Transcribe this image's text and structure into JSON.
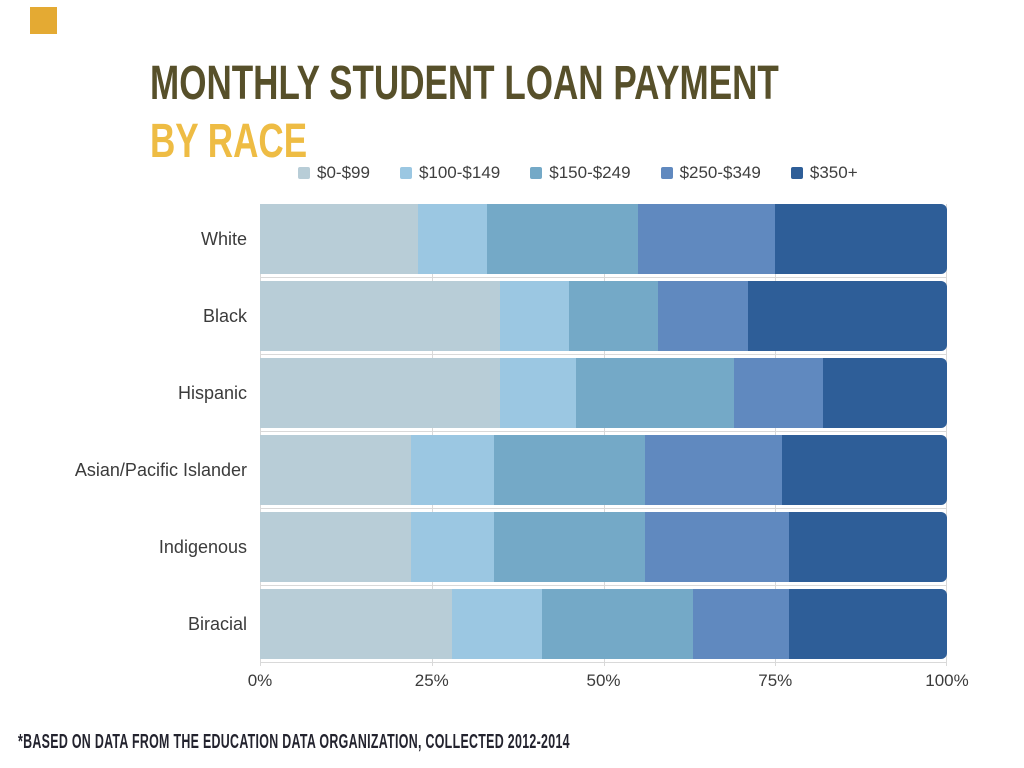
{
  "title": {
    "line1": "MONTHLY STUDENT LOAN PAYMENT",
    "line2": "BY RACE"
  },
  "footnote": "*BASED ON DATA FROM THE EDUCATION DATA ORGANIZATION, COLLECTED 2012-2014",
  "colors": {
    "title": "#57502a",
    "subtitle": "#eebc44",
    "corner_accent": "#e4aa33",
    "axis_text": "#3b3b3b",
    "grid": "#d9d9d9",
    "footnote": "#23232e"
  },
  "chart_data": {
    "type": "bar",
    "stacked": true,
    "orientation": "horizontal",
    "title": "Monthly Student Loan Payment by Race",
    "categories": [
      "White",
      "Black",
      "Hispanic",
      "Asian/Pacific Islander",
      "Indigenous",
      "Biracial"
    ],
    "series": [
      {
        "name": "$0-$99",
        "color": "#b8cdd7",
        "values": [
          23,
          35,
          35,
          22,
          22,
          28
        ]
      },
      {
        "name": "$100-$149",
        "color": "#9bc7e2",
        "values": [
          10,
          10,
          11,
          12,
          12,
          13
        ]
      },
      {
        "name": "$150-$249",
        "color": "#74a9c7",
        "values": [
          22,
          13,
          23,
          22,
          22,
          22
        ]
      },
      {
        "name": "$250-$349",
        "color": "#6089bf",
        "values": [
          20,
          13,
          13,
          20,
          21,
          14
        ]
      },
      {
        "name": "$350+",
        "color": "#2e5e98",
        "values": [
          25,
          29,
          18,
          24,
          23,
          23
        ]
      }
    ],
    "x_ticks": [
      "0%",
      "25%",
      "50%",
      "75%",
      "100%"
    ],
    "x_tick_values": [
      0,
      25,
      50,
      75,
      100
    ],
    "xlim": [
      0,
      100
    ],
    "legend_position": "top",
    "grid": true
  }
}
